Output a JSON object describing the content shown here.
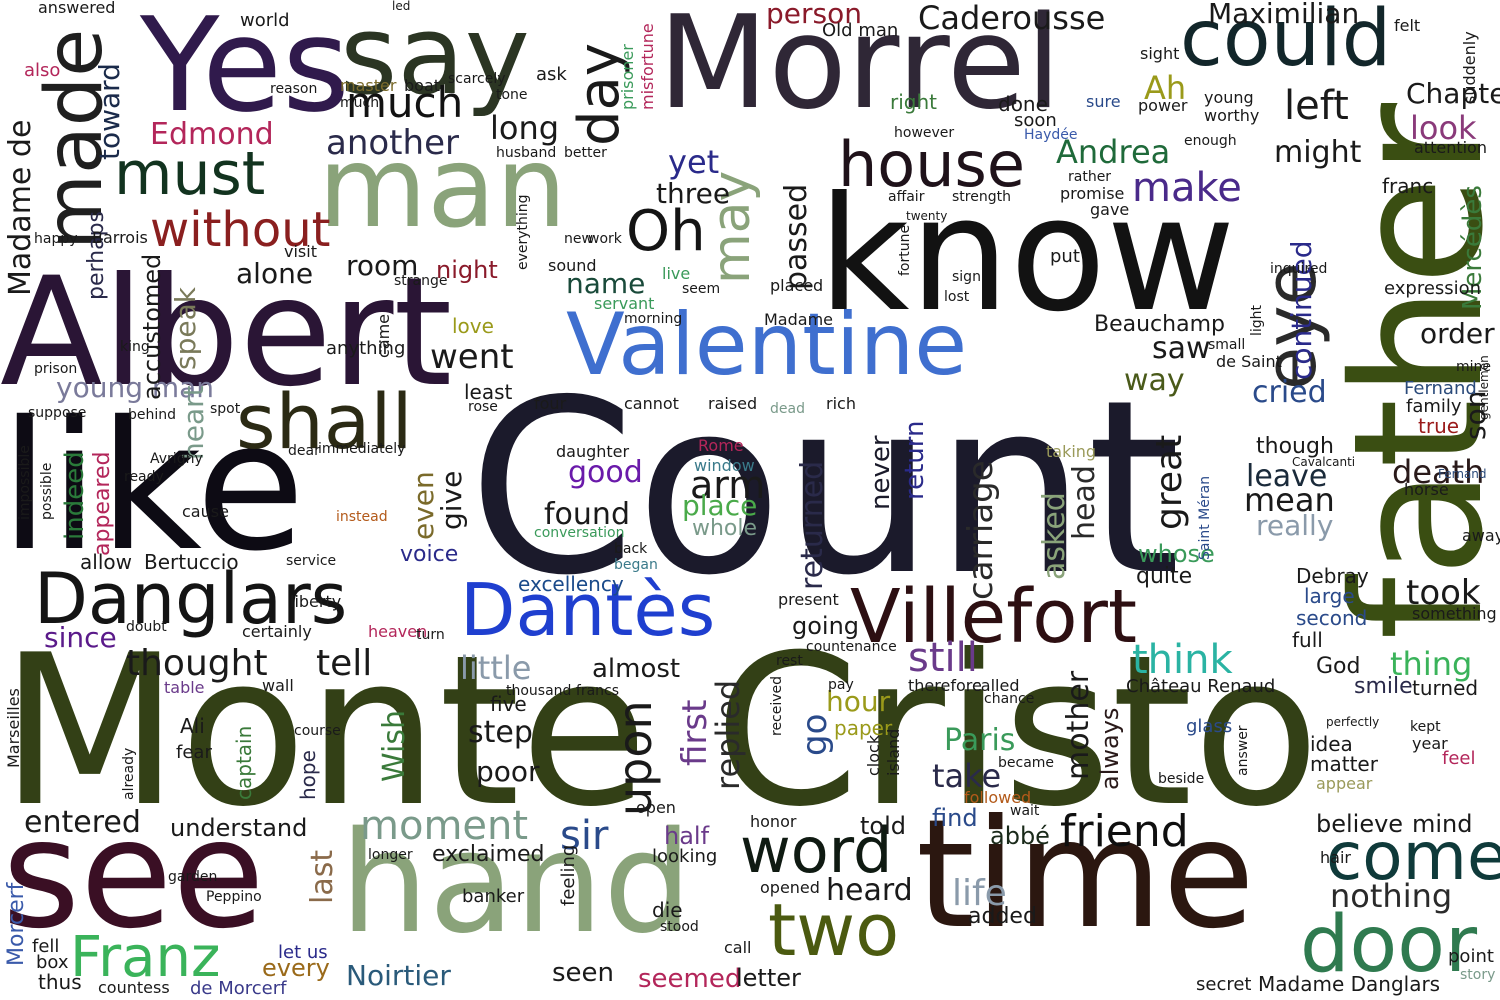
{
  "words": [
    {
      "text": "Count",
      "color": "#1b1a2b"
    },
    {
      "text": "Monte Cristo",
      "color": "#334016"
    },
    {
      "text": "Albert",
      "color": "#2a1535"
    },
    {
      "text": "know",
      "color": "#121212"
    },
    {
      "text": "like",
      "color": "#0d0b14"
    },
    {
      "text": "father",
      "color": "#3a4e12"
    },
    {
      "text": "time",
      "color": "#2b1710"
    },
    {
      "text": "Morrel",
      "color": "#2f2736"
    },
    {
      "text": "see",
      "color": "#3a0f24"
    },
    {
      "text": "hand",
      "color": "#8aa37a"
    },
    {
      "text": "say",
      "color": "#2b3523"
    },
    {
      "text": "Yes",
      "color": "#301a4c"
    },
    {
      "text": "man",
      "color": "#8aa37a"
    },
    {
      "text": "Valentine",
      "color": "#3f6fcf"
    },
    {
      "text": "Villefort",
      "color": "#2d0f12"
    },
    {
      "text": "Danglars",
      "color": "#141414"
    },
    {
      "text": "Dantès",
      "color": "#1f3fcf"
    },
    {
      "text": "could",
      "color": "#12262a"
    },
    {
      "text": "made",
      "color": "#1f1f1f"
    },
    {
      "text": "shall",
      "color": "#2b2a14"
    },
    {
      "text": "two",
      "color": "#4b5a10"
    },
    {
      "text": "word",
      "color": "#0f1a12"
    },
    {
      "text": "come",
      "color": "#0f3a3a"
    },
    {
      "text": "door",
      "color": "#2f7a4f"
    },
    {
      "text": "eye",
      "color": "#2a2a2a"
    },
    {
      "text": "house",
      "color": "#1f121a"
    },
    {
      "text": "must",
      "color": "#12331f"
    },
    {
      "text": "Oh",
      "color": "#141414"
    },
    {
      "text": "day",
      "color": "#1a1a1a"
    },
    {
      "text": "much",
      "color": "#121212"
    },
    {
      "text": "without",
      "color": "#8a1f1f"
    },
    {
      "text": "may",
      "color": "#8aa37a"
    },
    {
      "text": "upon",
      "color": "#1a1a1a"
    },
    {
      "text": "friend",
      "color": "#0f0f0f"
    },
    {
      "text": "moment",
      "color": "#7a9a8a"
    },
    {
      "text": "Franz",
      "color": "#3ab35a"
    },
    {
      "text": "Caderousse",
      "color": "#1a1a1a"
    },
    {
      "text": "Maximilian",
      "color": "#1a1a1a"
    },
    {
      "text": "Edmond",
      "color": "#b3265a"
    },
    {
      "text": "another",
      "color": "#2a2a4a"
    },
    {
      "text": "Andrea",
      "color": "#1f6a3a"
    },
    {
      "text": "make",
      "color": "#4a2a8a"
    },
    {
      "text": "left",
      "color": "#1a1a1a"
    },
    {
      "text": "might",
      "color": "#1a1a1a"
    },
    {
      "text": "Chapter",
      "color": "#1a1a1a"
    },
    {
      "text": "look",
      "color": "#8a3a7a"
    },
    {
      "text": "person",
      "color": "#8a1a2a"
    },
    {
      "text": "long",
      "color": "#1a1a1a"
    },
    {
      "text": "yet",
      "color": "#2a2a8a"
    },
    {
      "text": "three",
      "color": "#1a1a1a"
    },
    {
      "text": "Madame de",
      "color": "#1a1a1a"
    },
    {
      "text": "toward",
      "color": "#1a2a4a"
    },
    {
      "text": "room",
      "color": "#1a1a1a"
    },
    {
      "text": "name",
      "color": "#1a4a3a"
    },
    {
      "text": "night",
      "color": "#8a1a2a"
    },
    {
      "text": "passed",
      "color": "#1a1a1a"
    },
    {
      "text": "continued",
      "color": "#2a2a8a"
    },
    {
      "text": "Mercédès",
      "color": "#3a7a3a"
    },
    {
      "text": "order",
      "color": "#1a1a1a"
    },
    {
      "text": "went",
      "color": "#1a1a1a"
    },
    {
      "text": "alone",
      "color": "#1a1a1a"
    },
    {
      "text": "speak",
      "color": "#7a7a5a"
    },
    {
      "text": "young man",
      "color": "#7a7a9a"
    },
    {
      "text": "heart",
      "color": "#7a9a8a"
    },
    {
      "text": "indeed",
      "color": "#2a7a3a"
    },
    {
      "text": "appeared",
      "color": "#b3265a"
    },
    {
      "text": "perhaps",
      "color": "#2a2a4a"
    },
    {
      "text": "accustomed",
      "color": "#1a1a1a"
    },
    {
      "text": "cried",
      "color": "#2a4a8a"
    },
    {
      "text": "son",
      "color": "#1a1a1a"
    },
    {
      "text": "Beauchamp",
      "color": "#1a1a1a"
    },
    {
      "text": "saw",
      "color": "#1a1a1a"
    },
    {
      "text": "way",
      "color": "#4a5a1a"
    },
    {
      "text": "death",
      "color": "#2a1a1a"
    },
    {
      "text": "took",
      "color": "#1a1a1a"
    },
    {
      "text": "great",
      "color": "#1a1a1a"
    },
    {
      "text": "asked",
      "color": "#8aa37a"
    },
    {
      "text": "head",
      "color": "#2a2a2a"
    },
    {
      "text": "carriage",
      "color": "#2a2a2a"
    },
    {
      "text": "returned",
      "color": "#2a2a4a"
    },
    {
      "text": "return",
      "color": "#2a2a8a"
    },
    {
      "text": "never",
      "color": "#1a1a2a"
    },
    {
      "text": "give",
      "color": "#1a1a1a"
    },
    {
      "text": "even",
      "color": "#7a6a2a"
    },
    {
      "text": "good",
      "color": "#6a1aaa"
    },
    {
      "text": "arm",
      "color": "#1a1a1a"
    },
    {
      "text": "found",
      "color": "#1a1a1a"
    },
    {
      "text": "place",
      "color": "#4aaa4a"
    },
    {
      "text": "whole",
      "color": "#7a9a8a"
    },
    {
      "text": "leave",
      "color": "#1a2a3a"
    },
    {
      "text": "mean",
      "color": "#1a1a1a"
    },
    {
      "text": "really",
      "color": "#8a9aaa"
    },
    {
      "text": "whose",
      "color": "#3a9a5a"
    },
    {
      "text": "quite",
      "color": "#1a1a1a"
    },
    {
      "text": "since",
      "color": "#5a1a8a"
    },
    {
      "text": "Bertuccio",
      "color": "#1a1a1a"
    },
    {
      "text": "voice",
      "color": "#2a2a8a"
    },
    {
      "text": "allow",
      "color": "#1a1a1a"
    },
    {
      "text": "thought",
      "color": "#1a1a1a"
    },
    {
      "text": "tell",
      "color": "#1a1a1a"
    },
    {
      "text": "still",
      "color": "#6a3a8a"
    },
    {
      "text": "think",
      "color": "#2ab3a3"
    },
    {
      "text": "thing",
      "color": "#3ab35a"
    },
    {
      "text": "little",
      "color": "#8a9aaa"
    },
    {
      "text": "almost",
      "color": "#1a1a1a"
    },
    {
      "text": "excellency",
      "color": "#1a4a8a"
    },
    {
      "text": "going",
      "color": "#1a1a1a"
    },
    {
      "text": "hour",
      "color": "#9a9a1a"
    },
    {
      "text": "first",
      "color": "#6a3a8a"
    },
    {
      "text": "replied",
      "color": "#2a2a2a"
    },
    {
      "text": "go",
      "color": "#2a4a8a"
    },
    {
      "text": "mother",
      "color": "#1a1a1a"
    },
    {
      "text": "always",
      "color": "#2a1a1a"
    },
    {
      "text": "Paris",
      "color": "#3a9a5a"
    },
    {
      "text": "take",
      "color": "#2a2a4a"
    },
    {
      "text": "step",
      "color": "#1a1a1a"
    },
    {
      "text": "poor",
      "color": "#1a1a1a"
    },
    {
      "text": "sir",
      "color": "#2a4a8a"
    },
    {
      "text": "half",
      "color": "#6a3a8a"
    },
    {
      "text": "exclaimed",
      "color": "#1a1a1a"
    },
    {
      "text": "understand",
      "color": "#1a1a1a"
    },
    {
      "text": "entered",
      "color": "#1a1a1a"
    },
    {
      "text": "Wish",
      "color": "#3a7a3a"
    },
    {
      "text": "captain",
      "color": "#3a7a3a"
    },
    {
      "text": "hope",
      "color": "#2a2a4a"
    },
    {
      "text": "last",
      "color": "#8a6a4a"
    },
    {
      "text": "every",
      "color": "#9a6a1a"
    },
    {
      "text": "let us",
      "color": "#2a2a8a"
    },
    {
      "text": "Noirtier",
      "color": "#2a5a7a"
    },
    {
      "text": "seen",
      "color": "#1a1a1a"
    },
    {
      "text": "seemed",
      "color": "#b3265a"
    },
    {
      "text": "letter",
      "color": "#1a1a1a"
    },
    {
      "text": "heard",
      "color": "#1a1a1a"
    },
    {
      "text": "life",
      "color": "#8a9aaa"
    },
    {
      "text": "added",
      "color": "#1a1a1a"
    },
    {
      "text": "told",
      "color": "#1a1a1a"
    },
    {
      "text": "find",
      "color": "#2a4a8a"
    },
    {
      "text": "abbé",
      "color": "#1a2a1a"
    },
    {
      "text": "nothing",
      "color": "#2a2a2a"
    },
    {
      "text": "believe",
      "color": "#1a1a1a"
    },
    {
      "text": "mind",
      "color": "#1a1a1a"
    },
    {
      "text": "God",
      "color": "#1a1a1a"
    },
    {
      "text": "smile",
      "color": "#2a2a4a"
    },
    {
      "text": "turned",
      "color": "#1a1a1a"
    },
    {
      "text": "Château Renaud",
      "color": "#1a1a1a"
    },
    {
      "text": "Fernand",
      "color": "#2a4a7a"
    },
    {
      "text": "family",
      "color": "#1a1a1a"
    },
    {
      "text": "true",
      "color": "#9a1a1a"
    },
    {
      "text": "though",
      "color": "#1a1a1a"
    },
    {
      "text": "Debray",
      "color": "#1a1a1a"
    },
    {
      "text": "large",
      "color": "#2a4a8a"
    },
    {
      "text": "second",
      "color": "#2a4a8a"
    },
    {
      "text": "full",
      "color": "#1a1a1a"
    },
    {
      "text": "Madame Danglars",
      "color": "#1a1a1a"
    },
    {
      "text": "point",
      "color": "#1a1a1a"
    },
    {
      "text": "secret",
      "color": "#1a1a1a"
    },
    {
      "text": "story",
      "color": "#7a9a8a"
    },
    {
      "text": "expression",
      "color": "#1a1a1a"
    },
    {
      "text": "idea",
      "color": "#1a1a1a"
    },
    {
      "text": "matter",
      "color": "#1a1a1a"
    },
    {
      "text": "appear",
      "color": "#9a9a5a"
    },
    {
      "text": "year",
      "color": "#1a1a1a"
    },
    {
      "text": "feel",
      "color": "#b3265a"
    },
    {
      "text": "kept",
      "color": "#1a1a1a"
    },
    {
      "text": "hair",
      "color": "#1a1a1a"
    },
    {
      "text": "Morcerf",
      "color": "#3a5aaa"
    },
    {
      "text": "de Morcerf",
      "color": "#3a3a8a"
    },
    {
      "text": "countess",
      "color": "#1a1a1a"
    },
    {
      "text": "thus",
      "color": "#1a1a1a"
    },
    {
      "text": "fell",
      "color": "#1a1a1a"
    },
    {
      "text": "box",
      "color": "#1a1a1a"
    },
    {
      "text": "garden",
      "color": "#1a1a1a"
    },
    {
      "text": "Peppino",
      "color": "#1a1a1a"
    },
    {
      "text": "banker",
      "color": "#1a1a1a"
    },
    {
      "text": "looking",
      "color": "#1a1a1a"
    },
    {
      "text": "feeling",
      "color": "#1a1a1a"
    },
    {
      "text": "open",
      "color": "#1a1a1a"
    },
    {
      "text": "die",
      "color": "#1a1a1a"
    },
    {
      "text": "stood",
      "color": "#1a1a1a"
    },
    {
      "text": "call",
      "color": "#1a1a1a"
    },
    {
      "text": "paper",
      "color": "#9a9a1a"
    },
    {
      "text": "clock",
      "color": "#1a1a1a"
    },
    {
      "text": "island",
      "color": "#1a1a1a"
    },
    {
      "text": "glass",
      "color": "#2a4a8a"
    },
    {
      "text": "Ali",
      "color": "#1a1a1a"
    },
    {
      "text": "fear",
      "color": "#1a1a1a"
    },
    {
      "text": "wall",
      "color": "#1a1a1a"
    },
    {
      "text": "table",
      "color": "#6a3a8a"
    },
    {
      "text": "Marseilles",
      "color": "#1a1a1a"
    },
    {
      "text": "five",
      "color": "#1a1a1a"
    },
    {
      "text": "Rome",
      "color": "#b3265a"
    },
    {
      "text": "window",
      "color": "#3a7a8a"
    },
    {
      "text": "daughter",
      "color": "#1a1a1a"
    },
    {
      "text": "conversation",
      "color": "#3a9a5a"
    },
    {
      "text": "back",
      "color": "#1a1a1a"
    },
    {
      "text": "began",
      "color": "#3a7a8a"
    },
    {
      "text": "world",
      "color": "#1a1a1a"
    },
    {
      "text": "answered",
      "color": "#1a1a1a"
    },
    {
      "text": "also",
      "color": "#b3265a"
    },
    {
      "text": "prisoner",
      "color": "#3a9a5a"
    },
    {
      "text": "misfortune",
      "color": "#b3265a"
    },
    {
      "text": "Ah",
      "color": "#9a9a1a"
    },
    {
      "text": "sight",
      "color": "#1a1a1a"
    },
    {
      "text": "young",
      "color": "#1a1a1a"
    },
    {
      "text": "worthy",
      "color": "#1a1a1a"
    },
    {
      "text": "felt",
      "color": "#1a1a1a"
    },
    {
      "text": "suddenly",
      "color": "#1a1a1a"
    },
    {
      "text": "attention",
      "color": "#1a1a1a"
    },
    {
      "text": "right",
      "color": "#3a7a3a"
    },
    {
      "text": "done",
      "color": "#1a1a1a"
    },
    {
      "text": "soon",
      "color": "#1a1a1a"
    },
    {
      "text": "however",
      "color": "#1a1a1a"
    },
    {
      "text": "Haydée",
      "color": "#3a5aaa"
    },
    {
      "text": "sure",
      "color": "#2a4a8a"
    },
    {
      "text": "power",
      "color": "#1a1a1a"
    },
    {
      "text": "Old man",
      "color": "#1a1a1a"
    },
    {
      "text": "master",
      "color": "#7a6a2a"
    },
    {
      "text": "boat",
      "color": "#1a1a1a"
    },
    {
      "text": "much",
      "color": "#1a1a1a"
    },
    {
      "text": "Barrois",
      "color": "#1a1a1a"
    },
    {
      "text": "visit",
      "color": "#1a1a1a"
    },
    {
      "text": "happy",
      "color": "#1a1a1a"
    },
    {
      "text": "king",
      "color": "#1a1a1a"
    },
    {
      "text": "prison",
      "color": "#1a1a1a"
    },
    {
      "text": "Avrigny",
      "color": "#1a1a1a"
    },
    {
      "text": "ready",
      "color": "#1a1a1a"
    },
    {
      "text": "cause",
      "color": "#1a1a1a"
    },
    {
      "text": "possible",
      "color": "#1a1a1a"
    },
    {
      "text": "impossible",
      "color": "#1a1a1a"
    },
    {
      "text": "suppose",
      "color": "#1a1a1a"
    },
    {
      "text": "anything",
      "color": "#1a1a1a"
    },
    {
      "text": "came",
      "color": "#1a1a1a"
    },
    {
      "text": "love",
      "color": "#9a9a1a"
    },
    {
      "text": "least",
      "color": "#1a1a1a"
    },
    {
      "text": "rose",
      "color": "#1a1a1a"
    },
    {
      "text": "sound",
      "color": "#1a1a1a"
    },
    {
      "text": "live",
      "color": "#3a9a5a"
    },
    {
      "text": "servant",
      "color": "#3a9a5a"
    },
    {
      "text": "morning",
      "color": "#1a1a1a"
    },
    {
      "text": "seem",
      "color": "#1a1a1a"
    },
    {
      "text": "placed",
      "color": "#1a1a1a"
    },
    {
      "text": "Madame",
      "color": "#1a1a1a"
    },
    {
      "text": "raised",
      "color": "#1a1a1a"
    },
    {
      "text": "dead",
      "color": "#7a9a8a"
    },
    {
      "text": "rich",
      "color": "#1a1a1a"
    },
    {
      "text": "present",
      "color": "#1a1a1a"
    },
    {
      "text": "countenance",
      "color": "#1a1a1a"
    },
    {
      "text": "certainly",
      "color": "#1a1a1a"
    },
    {
      "text": "liberty",
      "color": "#1a1a1a"
    },
    {
      "text": "service",
      "color": "#1a1a1a"
    },
    {
      "text": "heaven",
      "color": "#b3265a"
    },
    {
      "text": "turn",
      "color": "#1a1a1a"
    },
    {
      "text": "instead",
      "color": "#b35a1a"
    },
    {
      "text": "immediately",
      "color": "#1a1a1a"
    },
    {
      "text": "dear",
      "color": "#1a1a1a"
    },
    {
      "text": "spot",
      "color": "#1a1a1a"
    },
    {
      "text": "behind",
      "color": "#1a1a1a"
    },
    {
      "text": "doubt",
      "color": "#1a1a1a"
    },
    {
      "text": "cannot",
      "color": "#1a1a1a"
    },
    {
      "text": "four",
      "color": "#1a1a1a"
    },
    {
      "text": "taking",
      "color": "#9a9a5a"
    },
    {
      "text": "horse",
      "color": "#1a1a1a"
    },
    {
      "text": "gentlemen",
      "color": "#1a1a1a"
    },
    {
      "text": "mine",
      "color": "#1a1a1a"
    },
    {
      "text": "something",
      "color": "#1a1a1a"
    },
    {
      "text": "away",
      "color": "#1a1a1a"
    },
    {
      "text": "rest",
      "color": "#1a1a1a"
    },
    {
      "text": "pay",
      "color": "#1a1a1a"
    },
    {
      "text": "therefore",
      "color": "#1a1a1a"
    },
    {
      "text": "called",
      "color": "#1a1a1a"
    },
    {
      "text": "chance",
      "color": "#1a1a1a"
    },
    {
      "text": "became",
      "color": "#1a1a1a"
    },
    {
      "text": "wait",
      "color": "#1a1a1a"
    },
    {
      "text": "honor",
      "color": "#1a1a1a"
    },
    {
      "text": "opened",
      "color": "#1a1a1a"
    },
    {
      "text": "followed",
      "color": "#b35a1a"
    },
    {
      "text": "longer",
      "color": "#1a1a1a"
    },
    {
      "text": "course",
      "color": "#1a1a1a"
    },
    {
      "text": "already",
      "color": "#1a1a1a"
    },
    {
      "text": "Saint Méran",
      "color": "#2a4a8a"
    },
    {
      "text": "de Saint",
      "color": "#1a1a1a"
    },
    {
      "text": "small",
      "color": "#1a1a1a"
    },
    {
      "text": "Cavalcanti",
      "color": "#1a1a1a"
    },
    {
      "text": "Fernand",
      "color": "#2a4a7a"
    },
    {
      "text": "sign",
      "color": "#1a1a1a"
    },
    {
      "text": "lost",
      "color": "#1a1a1a"
    },
    {
      "text": "put",
      "color": "#1a1a1a"
    },
    {
      "text": "fortune",
      "color": "#1a1a1a"
    },
    {
      "text": "light",
      "color": "#1a1a1a"
    },
    {
      "text": "strange",
      "color": "#1a1a1a"
    },
    {
      "text": "reason",
      "color": "#1a1a1a"
    },
    {
      "text": "strength",
      "color": "#1a1a1a"
    },
    {
      "text": "affair",
      "color": "#1a1a1a"
    },
    {
      "text": "twenty",
      "color": "#1a1a1a"
    },
    {
      "text": "promise",
      "color": "#1a1a1a"
    },
    {
      "text": "rather",
      "color": "#1a1a1a"
    },
    {
      "text": "gave",
      "color": "#1a1a1a"
    },
    {
      "text": "enough",
      "color": "#1a1a1a"
    },
    {
      "text": "franc",
      "color": "#1a1a1a"
    },
    {
      "text": "inquired",
      "color": "#1a1a1a"
    },
    {
      "text": "received",
      "color": "#1a1a1a"
    },
    {
      "text": "thousand francs",
      "color": "#1a1a1a"
    },
    {
      "text": "better",
      "color": "#1a1a1a"
    },
    {
      "text": "tone",
      "color": "#1a1a1a"
    },
    {
      "text": "husband",
      "color": "#1a1a1a"
    },
    {
      "text": "scarcely",
      "color": "#1a1a1a"
    },
    {
      "text": "answer",
      "color": "#1a1a1a"
    },
    {
      "text": "beside",
      "color": "#1a1a1a"
    },
    {
      "text": "perfectly",
      "color": "#1a1a1a"
    },
    {
      "text": "everything",
      "color": "#1a1a1a"
    },
    {
      "text": "new",
      "color": "#1a1a1a"
    },
    {
      "text": "work",
      "color": "#1a1a1a"
    },
    {
      "text": "ask",
      "color": "#1a1a1a"
    },
    {
      "text": "led",
      "color": "#1a1a1a"
    }
  ]
}
